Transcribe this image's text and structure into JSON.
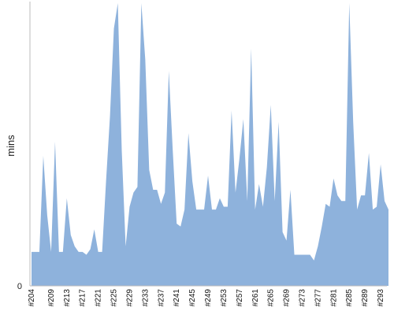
{
  "chart_data": {
    "type": "area",
    "title": "",
    "xlabel": "",
    "ylabel": "mins",
    "y_tick_labels": [
      "0"
    ],
    "ylim": [
      0,
      100
    ],
    "grid": false,
    "legend": "none",
    "color": "#8eb2dc",
    "x": [
      "#204",
      "#205",
      "#206",
      "#207",
      "#208",
      "#209",
      "#210",
      "#211",
      "#212",
      "#213",
      "#214",
      "#215",
      "#216",
      "#217",
      "#218",
      "#219",
      "#220",
      "#221",
      "#222",
      "#223",
      "#224",
      "#225",
      "#226",
      "#227",
      "#228",
      "#229",
      "#230",
      "#231",
      "#232",
      "#233",
      "#234",
      "#235",
      "#236",
      "#237",
      "#238",
      "#239",
      "#240",
      "#241",
      "#242",
      "#243",
      "#244",
      "#245",
      "#246",
      "#247",
      "#248",
      "#249",
      "#250",
      "#251",
      "#252",
      "#253",
      "#254",
      "#255",
      "#256",
      "#257",
      "#258",
      "#259",
      "#260",
      "#261",
      "#262",
      "#263",
      "#264",
      "#265",
      "#266",
      "#267",
      "#268",
      "#269",
      "#270",
      "#271",
      "#272",
      "#273",
      "#274",
      "#275",
      "#276",
      "#277",
      "#278",
      "#279",
      "#280",
      "#281",
      "#282",
      "#283",
      "#284",
      "#285",
      "#286",
      "#287",
      "#288",
      "#289",
      "#290",
      "#291",
      "#292",
      "#293",
      "#294",
      "#295"
    ],
    "values": [
      12,
      12,
      12,
      46,
      25,
      12,
      51,
      12,
      12,
      31,
      18,
      14,
      12,
      12,
      11,
      13,
      20,
      12,
      12,
      37,
      60,
      91,
      110,
      48,
      14,
      28,
      33,
      35,
      105,
      80,
      41,
      34,
      34,
      29,
      33,
      76,
      48,
      22,
      21,
      27,
      54,
      37,
      27,
      27,
      27,
      39,
      27,
      27,
      31,
      28,
      28,
      62,
      33,
      45,
      59,
      30,
      84,
      27,
      36,
      28,
      42,
      64,
      30,
      58,
      19,
      16,
      34,
      11,
      11,
      11,
      11,
      11,
      9,
      14,
      21,
      29,
      28,
      38,
      32,
      30,
      30,
      100,
      58,
      27,
      32,
      32,
      47,
      27,
      28,
      43,
      30,
      27
    ],
    "x_tick_labels": [
      "#204",
      "#209",
      "#213",
      "#217",
      "#221",
      "#225",
      "#229",
      "#233",
      "#237",
      "#241",
      "#245",
      "#249",
      "#253",
      "#257",
      "#261",
      "#265",
      "#269",
      "#273",
      "#277",
      "#281",
      "#285",
      "#289",
      "#293"
    ]
  }
}
